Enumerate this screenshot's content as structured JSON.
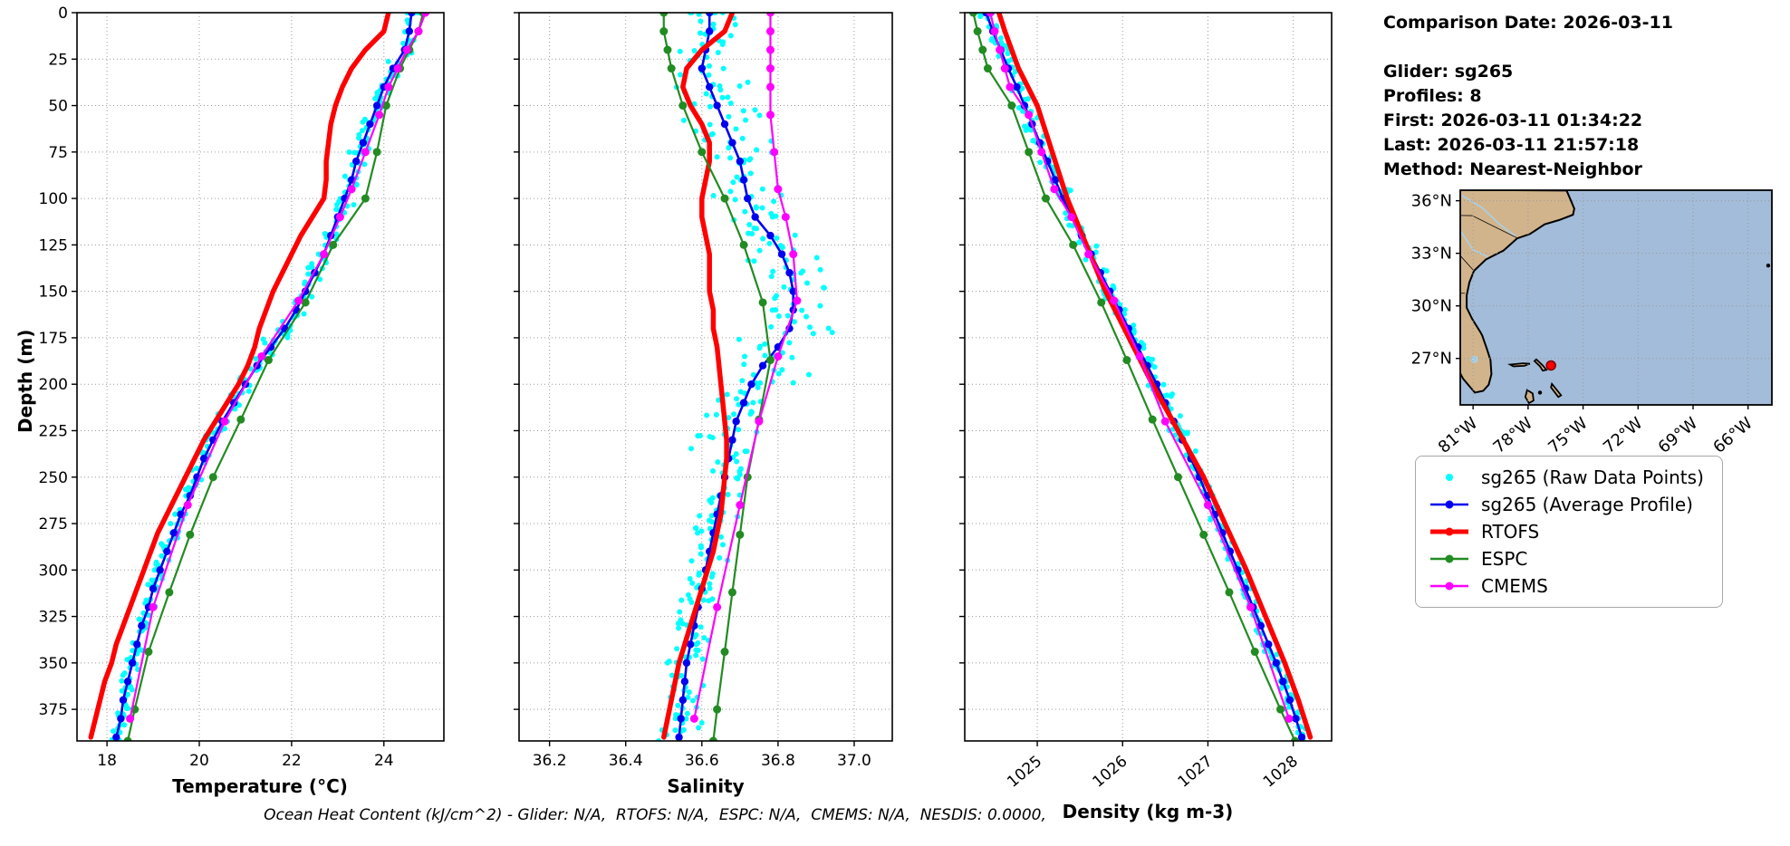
{
  "info": {
    "date_line": "Comparison Date: 2026-03-11",
    "lines": [
      "Glider: sg265",
      "Profiles: 8",
      "First: 2026-03-11 01:34:22",
      "Last: 2026-03-11 21:57:18",
      "Method: Nearest-Neighbor"
    ]
  },
  "footer": "Ocean Heat Content (kJ/cm^2) - Glider: N/A,  RTOFS: N/A,  ESPC: N/A,  CMEMS: N/A,  NESDIS: 0.0000,",
  "colors": {
    "raw": "#00FFFF",
    "average": "#0000EE",
    "rtofs": "#FF0000",
    "espc": "#228B22",
    "cmems": "#FF00FF"
  },
  "depth_axis": {
    "label": "Depth (m)",
    "min": 0,
    "max": 392,
    "ticks": [
      0,
      25,
      50,
      75,
      100,
      125,
      150,
      175,
      200,
      225,
      250,
      275,
      300,
      325,
      350,
      375
    ]
  },
  "legend": {
    "items": [
      {
        "label": "sg265 (Raw Data Points)",
        "color": "#00FFFF",
        "style": "scatter"
      },
      {
        "label": "sg265 (Average Profile)",
        "color": "#0000EE",
        "style": "line-marker"
      },
      {
        "label": "RTOFS",
        "color": "#FF0000",
        "style": "line-thick"
      },
      {
        "label": "ESPC",
        "color": "#228B22",
        "style": "line-marker"
      },
      {
        "label": "CMEMS",
        "color": "#FF00FF",
        "style": "line-marker"
      }
    ]
  },
  "chart_data": [
    {
      "type": "line",
      "id": "temperature",
      "xlabel": "Temperature (°C)",
      "x_range": [
        17.35,
        25.3
      ],
      "grid_values": [
        18,
        20,
        22,
        24
      ],
      "ticks": [
        {
          "v": 18,
          "label": "18"
        },
        {
          "v": 20,
          "label": "20"
        },
        {
          "v": 22,
          "label": "22"
        },
        {
          "v": 24,
          "label": "24"
        }
      ],
      "rotate_ticks": false,
      "series": [
        {
          "name": "sg265 (Raw Data Points)",
          "type": "scatter",
          "color": "#00FFFF",
          "points_per_level": 8,
          "jitter_shallow": 0.14,
          "jitter_mid": 0.14,
          "jitter_deep": 0.1
        },
        {
          "name": "sg265 (Average Profile)",
          "key": "avg",
          "color": "#0000EE",
          "marker": 4.2,
          "lw": 2.6,
          "depths": [
            0,
            10,
            20,
            30,
            40,
            50,
            60,
            70,
            80,
            90,
            100,
            110,
            120,
            130,
            140,
            150,
            160,
            170,
            180,
            190,
            200,
            210,
            220,
            230,
            240,
            250,
            260,
            270,
            280,
            290,
            300,
            310,
            320,
            330,
            340,
            350,
            360,
            370,
            380,
            390
          ],
          "values": [
            24.6,
            24.55,
            24.45,
            24.2,
            24.0,
            23.85,
            23.7,
            23.55,
            23.4,
            23.3,
            23.15,
            23.0,
            22.85,
            22.7,
            22.5,
            22.3,
            22.1,
            21.85,
            21.55,
            21.25,
            21.0,
            20.75,
            20.5,
            20.3,
            20.1,
            19.95,
            19.8,
            19.6,
            19.45,
            19.3,
            19.15,
            19.0,
            18.9,
            18.75,
            18.65,
            18.55,
            18.45,
            18.35,
            18.3,
            18.2
          ]
        },
        {
          "name": "RTOFS",
          "color": "#FF0000",
          "marker": 0,
          "lw": 5.5,
          "depths": [
            0,
            10,
            20,
            30,
            40,
            50,
            60,
            70,
            80,
            90,
            100,
            110,
            120,
            130,
            140,
            150,
            160,
            170,
            180,
            190,
            200,
            210,
            220,
            230,
            240,
            250,
            260,
            270,
            280,
            290,
            300,
            310,
            320,
            330,
            340,
            350,
            360,
            370,
            380,
            390
          ],
          "values": [
            24.1,
            24.0,
            23.6,
            23.3,
            23.1,
            22.95,
            22.85,
            22.8,
            22.75,
            22.75,
            22.7,
            22.45,
            22.2,
            22.0,
            21.8,
            21.6,
            21.45,
            21.3,
            21.2,
            21.05,
            20.85,
            20.6,
            20.35,
            20.1,
            19.9,
            19.7,
            19.5,
            19.3,
            19.1,
            18.95,
            18.8,
            18.65,
            18.5,
            18.35,
            18.2,
            18.1,
            17.95,
            17.85,
            17.75,
            17.65
          ]
        },
        {
          "name": "ESPC",
          "color": "#228B22",
          "marker": 4.5,
          "lw": 2.2,
          "depths": [
            0,
            10,
            20,
            30,
            50,
            75,
            100,
            125,
            156,
            187,
            219,
            250,
            281,
            312,
            344,
            375,
            392
          ],
          "values": [
            24.85,
            24.75,
            24.55,
            24.35,
            24.05,
            23.85,
            23.6,
            22.9,
            22.3,
            21.5,
            20.9,
            20.3,
            19.8,
            19.35,
            18.9,
            18.6,
            18.45
          ]
        },
        {
          "name": "CMEMS",
          "color": "#FF00FF",
          "marker": 4.5,
          "lw": 2.2,
          "depths": [
            0,
            10,
            20,
            30,
            40,
            55,
            75,
            95,
            110,
            130,
            155,
            185,
            220,
            265,
            320,
            380
          ],
          "values": [
            24.9,
            24.75,
            24.5,
            24.3,
            24.1,
            23.9,
            23.6,
            23.3,
            23.05,
            22.7,
            22.15,
            21.35,
            20.55,
            19.75,
            19.0,
            18.5
          ]
        }
      ]
    },
    {
      "type": "line",
      "id": "salinity",
      "xlabel": "Salinity",
      "x_range": [
        36.12,
        37.1
      ],
      "grid_values": [
        36.2,
        36.4,
        36.6,
        36.8,
        37.0
      ],
      "ticks": [
        {
          "v": 36.2,
          "label": "36.2"
        },
        {
          "v": 36.4,
          "label": "36.4"
        },
        {
          "v": 36.6,
          "label": "36.6"
        },
        {
          "v": 36.8,
          "label": "36.8"
        },
        {
          "v": 37.0,
          "label": "37.0"
        }
      ],
      "rotate_ticks": false,
      "series": [
        {
          "name": "sg265 (Raw Data Points)",
          "type": "scatter",
          "color": "#00FFFF",
          "points_per_level": 8,
          "jitter_shallow": 0.05,
          "jitter_mid": 0.085,
          "jitter_deep": 0.04
        },
        {
          "name": "sg265 (Average Profile)",
          "key": "avg",
          "color": "#0000EE",
          "marker": 4.2,
          "lw": 2.6,
          "depths": [
            0,
            10,
            20,
            30,
            40,
            50,
            60,
            70,
            80,
            90,
            100,
            110,
            120,
            130,
            140,
            150,
            160,
            170,
            180,
            190,
            200,
            210,
            220,
            230,
            240,
            250,
            260,
            270,
            280,
            290,
            300,
            310,
            320,
            330,
            340,
            350,
            360,
            370,
            380,
            390
          ],
          "values": [
            36.62,
            36.62,
            36.61,
            36.6,
            36.62,
            36.64,
            36.66,
            36.68,
            36.7,
            36.71,
            36.72,
            36.74,
            36.78,
            36.81,
            36.83,
            36.84,
            36.84,
            36.83,
            36.8,
            36.76,
            36.73,
            36.71,
            36.69,
            36.68,
            36.67,
            36.66,
            36.65,
            36.64,
            36.63,
            36.62,
            36.61,
            36.6,
            36.59,
            36.58,
            36.57,
            36.56,
            36.555,
            36.55,
            36.545,
            36.54
          ]
        },
        {
          "name": "RTOFS",
          "color": "#FF0000",
          "marker": 0,
          "lw": 5.5,
          "depths": [
            0,
            10,
            20,
            30,
            40,
            50,
            60,
            70,
            80,
            90,
            100,
            110,
            120,
            130,
            140,
            150,
            160,
            170,
            180,
            190,
            200,
            210,
            220,
            230,
            240,
            250,
            260,
            270,
            280,
            290,
            300,
            310,
            320,
            330,
            340,
            350,
            360,
            370,
            380,
            390
          ],
          "values": [
            36.68,
            36.66,
            36.6,
            36.56,
            36.55,
            36.57,
            36.6,
            36.62,
            36.62,
            36.61,
            36.6,
            36.6,
            36.61,
            36.62,
            36.62,
            36.62,
            36.63,
            36.63,
            36.64,
            36.645,
            36.65,
            36.655,
            36.66,
            36.665,
            36.665,
            36.66,
            36.655,
            36.65,
            36.64,
            36.63,
            36.615,
            36.6,
            36.585,
            36.57,
            36.555,
            36.54,
            36.53,
            36.52,
            36.51,
            36.5
          ]
        },
        {
          "name": "ESPC",
          "color": "#228B22",
          "marker": 4.5,
          "lw": 2.2,
          "depths": [
            0,
            10,
            20,
            30,
            50,
            75,
            100,
            125,
            156,
            187,
            219,
            250,
            281,
            312,
            344,
            375,
            392
          ],
          "values": [
            36.5,
            36.5,
            36.51,
            36.52,
            36.55,
            36.6,
            36.66,
            36.71,
            36.76,
            36.78,
            36.75,
            36.72,
            36.7,
            36.68,
            36.66,
            36.64,
            36.63
          ]
        },
        {
          "name": "CMEMS",
          "color": "#FF00FF",
          "marker": 4.5,
          "lw": 2.2,
          "depths": [
            0,
            10,
            20,
            30,
            40,
            55,
            75,
            95,
            110,
            130,
            155,
            185,
            220,
            265,
            320,
            380
          ],
          "values": [
            36.78,
            36.78,
            36.78,
            36.78,
            36.78,
            36.78,
            36.79,
            36.8,
            36.82,
            36.84,
            36.85,
            36.8,
            36.75,
            36.7,
            36.64,
            36.58
          ]
        }
      ]
    },
    {
      "type": "line",
      "id": "density",
      "xlabel": "Density (kg m-3)",
      "x_range": [
        1024.15,
        1028.45
      ],
      "grid_values": [
        1025,
        1026,
        1027,
        1028
      ],
      "ticks": [
        {
          "v": 1025,
          "label": "1025"
        },
        {
          "v": 1026,
          "label": "1026"
        },
        {
          "v": 1027,
          "label": "1027"
        },
        {
          "v": 1028,
          "label": "1028"
        }
      ],
      "rotate_ticks": true,
      "series": [
        {
          "name": "sg265 (Raw Data Points)",
          "type": "scatter",
          "color": "#00FFFF",
          "points_per_level": 8,
          "jitter_shallow": 0.07,
          "jitter_mid": 0.07,
          "jitter_deep": 0.05
        },
        {
          "name": "sg265 (Average Profile)",
          "key": "avg",
          "color": "#0000EE",
          "marker": 4.2,
          "lw": 2.6,
          "depths": [
            0,
            10,
            20,
            30,
            40,
            50,
            60,
            70,
            80,
            90,
            100,
            110,
            120,
            130,
            140,
            150,
            160,
            170,
            180,
            190,
            200,
            210,
            220,
            230,
            240,
            250,
            260,
            270,
            280,
            290,
            300,
            310,
            320,
            330,
            340,
            350,
            360,
            370,
            380,
            390
          ],
          "values": [
            1024.4,
            1024.48,
            1024.57,
            1024.66,
            1024.76,
            1024.85,
            1024.94,
            1025.03,
            1025.12,
            1025.21,
            1025.3,
            1025.41,
            1025.52,
            1025.63,
            1025.74,
            1025.85,
            1025.96,
            1026.07,
            1026.18,
            1026.29,
            1026.4,
            1026.5,
            1026.6,
            1026.7,
            1026.8,
            1026.9,
            1026.99,
            1027.08,
            1027.17,
            1027.26,
            1027.35,
            1027.44,
            1027.53,
            1027.62,
            1027.71,
            1027.8,
            1027.88,
            1027.96,
            1028.03,
            1028.1
          ]
        },
        {
          "name": "RTOFS",
          "color": "#FF0000",
          "marker": 0,
          "lw": 5.5,
          "depths": [
            0,
            10,
            20,
            30,
            40,
            50,
            60,
            70,
            80,
            90,
            100,
            110,
            120,
            130,
            140,
            150,
            160,
            170,
            180,
            190,
            200,
            210,
            220,
            230,
            240,
            250,
            260,
            270,
            280,
            290,
            300,
            310,
            320,
            330,
            340,
            350,
            360,
            370,
            380,
            390
          ],
          "values": [
            1024.55,
            1024.62,
            1024.7,
            1024.78,
            1024.89,
            1025.0,
            1025.07,
            1025.14,
            1025.21,
            1025.28,
            1025.35,
            1025.44,
            1025.53,
            1025.62,
            1025.71,
            1025.8,
            1025.91,
            1026.02,
            1026.13,
            1026.24,
            1026.35,
            1026.47,
            1026.59,
            1026.71,
            1026.83,
            1026.95,
            1027.05,
            1027.15,
            1027.25,
            1027.35,
            1027.45,
            1027.54,
            1027.63,
            1027.72,
            1027.81,
            1027.9,
            1027.98,
            1028.06,
            1028.13,
            1028.2
          ]
        },
        {
          "name": "ESPC",
          "color": "#228B22",
          "marker": 4.5,
          "lw": 2.2,
          "depths": [
            0,
            10,
            20,
            30,
            50,
            75,
            100,
            125,
            156,
            187,
            219,
            250,
            281,
            312,
            344,
            375,
            392
          ],
          "values": [
            1024.25,
            1024.3,
            1024.36,
            1024.42,
            1024.7,
            1024.9,
            1025.1,
            1025.42,
            1025.75,
            1026.05,
            1026.35,
            1026.65,
            1026.95,
            1027.25,
            1027.55,
            1027.85,
            1028.02
          ]
        },
        {
          "name": "CMEMS",
          "color": "#FF00FF",
          "marker": 4.5,
          "lw": 2.2,
          "depths": [
            0,
            10,
            20,
            30,
            40,
            55,
            75,
            95,
            110,
            130,
            155,
            185,
            220,
            265,
            320,
            380
          ],
          "values": [
            1024.45,
            1024.5,
            1024.56,
            1024.62,
            1024.68,
            1024.9,
            1025.05,
            1025.2,
            1025.4,
            1025.6,
            1025.9,
            1026.2,
            1026.5,
            1027.0,
            1027.5,
            1027.95
          ]
        }
      ]
    }
  ],
  "map": {
    "lon_range": [
      -81.7,
      -64.7
    ],
    "lat_range": [
      24.35,
      36.6
    ],
    "lat_ticks": [
      {
        "v": 36,
        "label": "36°N"
      },
      {
        "v": 33,
        "label": "33°N"
      },
      {
        "v": 30,
        "label": "30°N"
      },
      {
        "v": 27,
        "label": "27°N"
      }
    ],
    "lon_ticks": [
      {
        "v": -81,
        "label": "81°W"
      },
      {
        "v": -78,
        "label": "78°W"
      },
      {
        "v": -75,
        "label": "75°W"
      },
      {
        "v": -72,
        "label": "72°W"
      },
      {
        "v": -69,
        "label": "69°W"
      },
      {
        "v": -66,
        "label": "66°W"
      }
    ],
    "glider_location": {
      "lat": 26.6,
      "lon": -76.75
    },
    "land_color": "#d2b48c",
    "ocean_color": "#a3bcd9"
  }
}
